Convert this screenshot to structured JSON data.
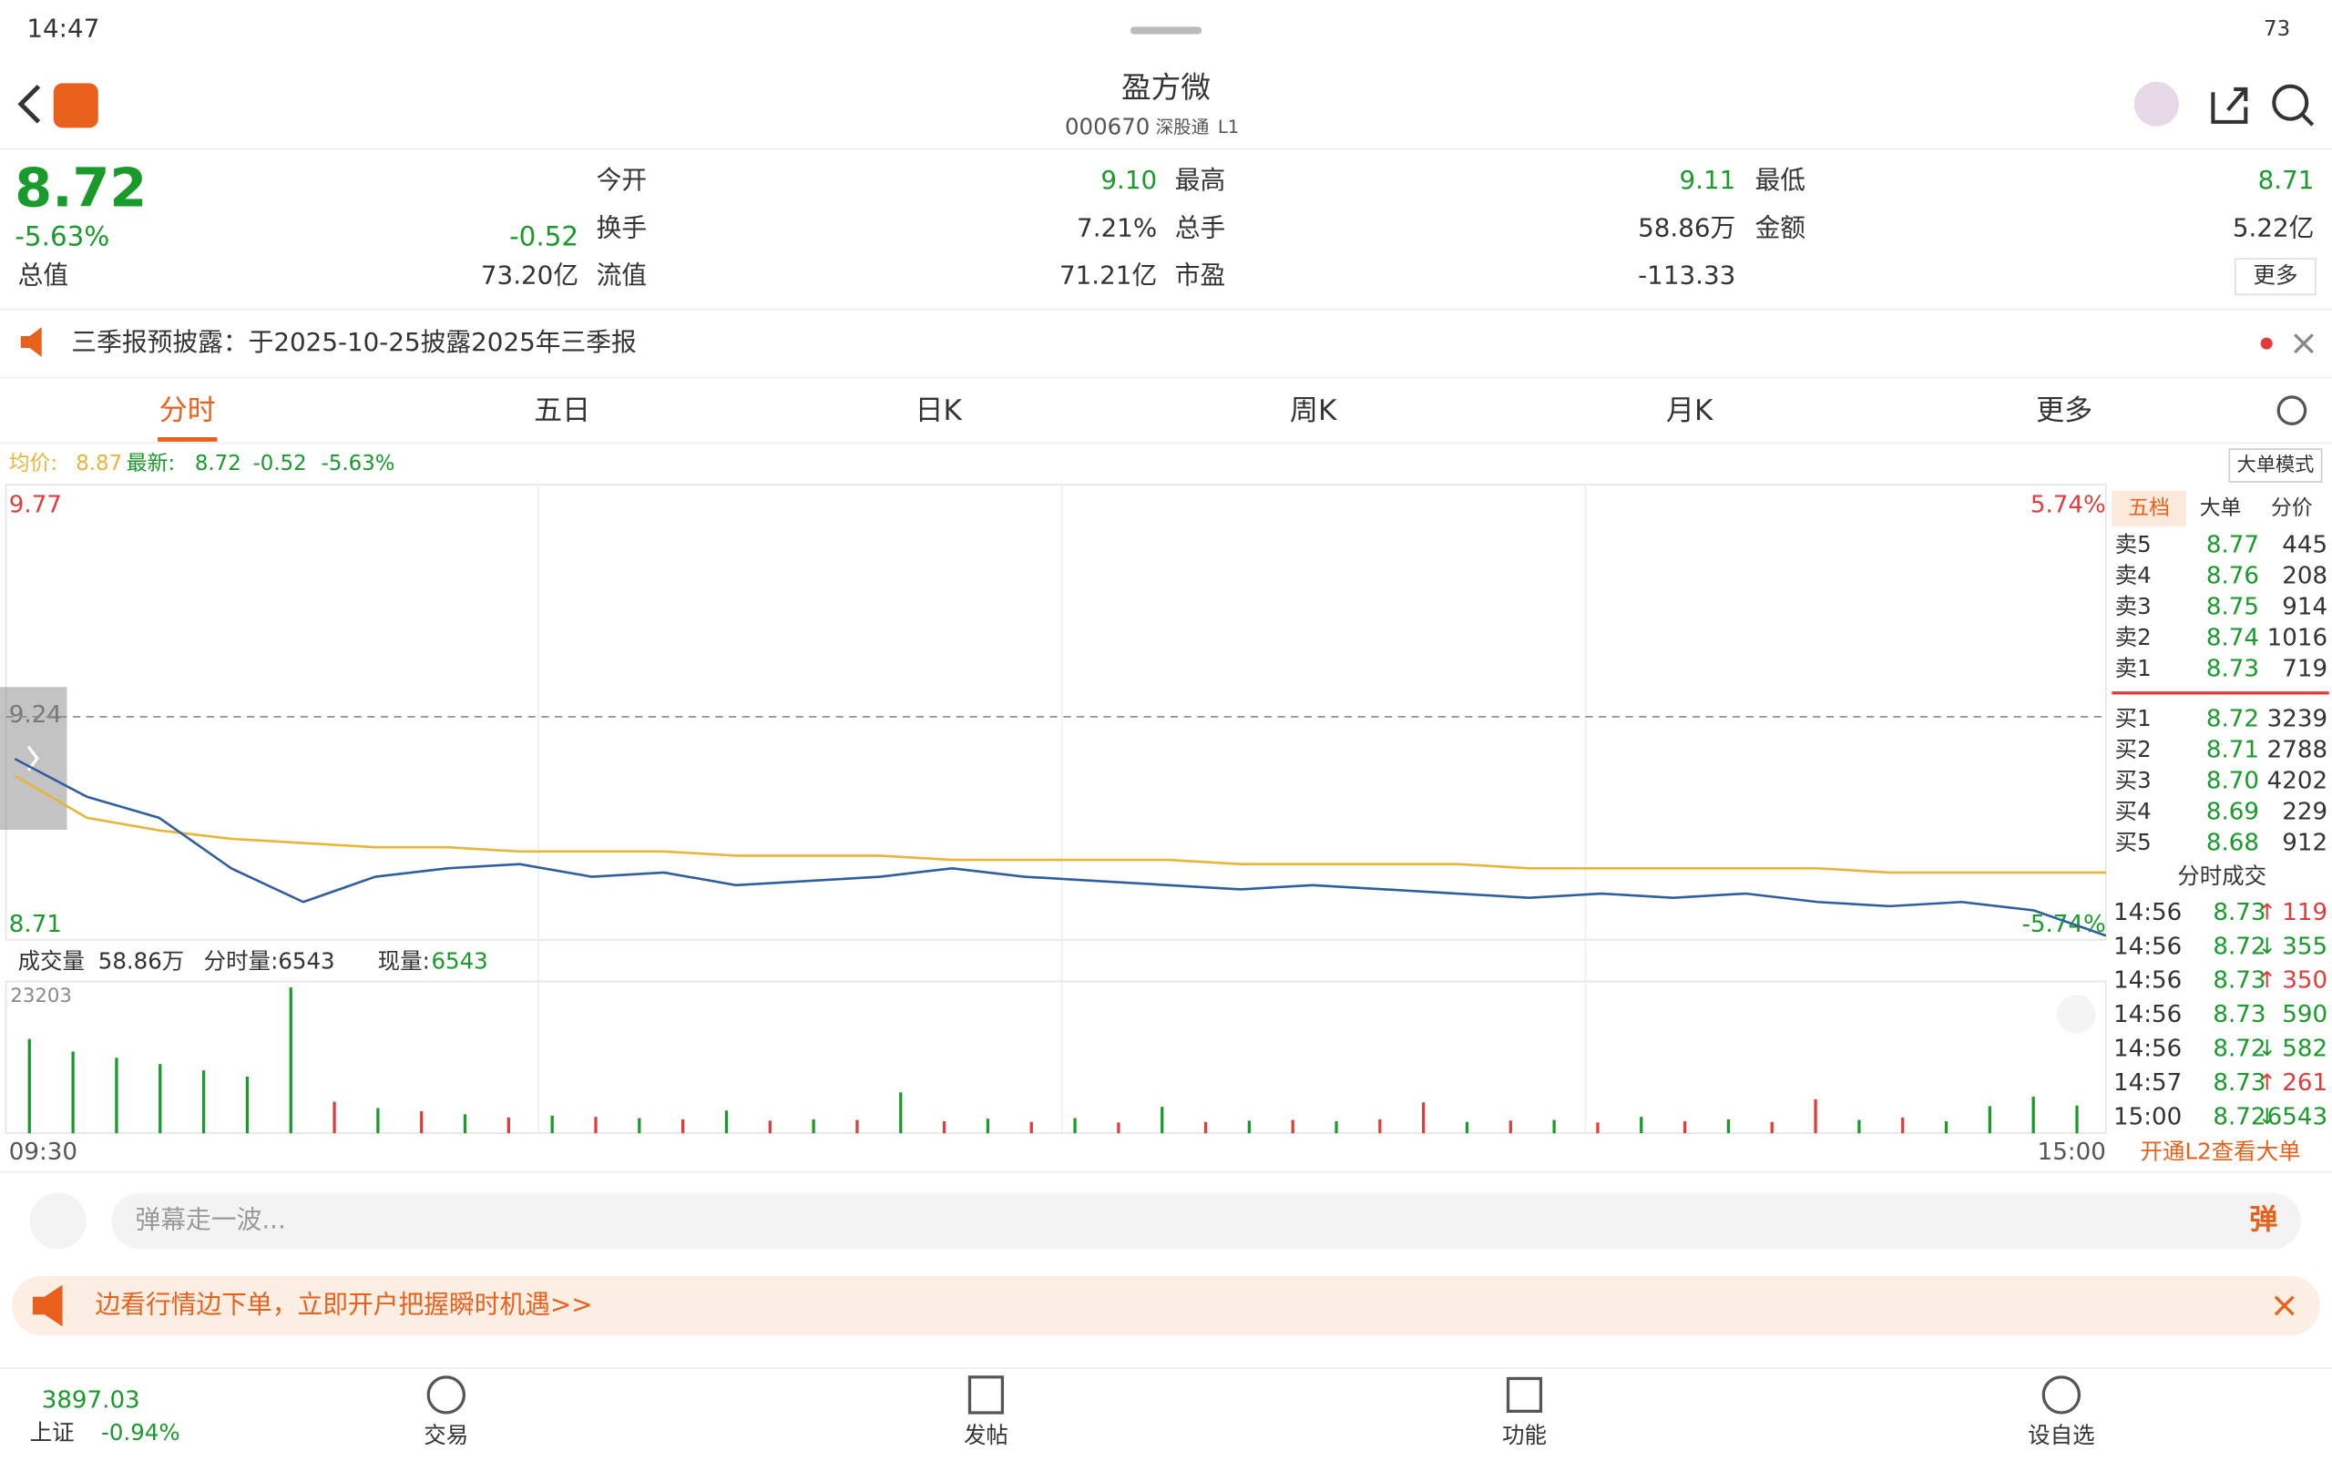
{
  "status": {
    "time": "14:47",
    "battery": "73"
  },
  "header": {
    "title": "盈方微",
    "code": "000670",
    "tags": [
      "深股通",
      "L1"
    ]
  },
  "quote": {
    "price": "8.72",
    "change_pct": "-5.63%",
    "change": "-0.52",
    "more": "更多",
    "cells": [
      {
        "label": "今开",
        "value": "9.10"
      },
      {
        "label": "最高",
        "value": "9.11"
      },
      {
        "label": "最低",
        "value": "8.71"
      },
      {
        "label": "换手",
        "value": "7.21%"
      },
      {
        "label": "总手",
        "value": "58.86万"
      },
      {
        "label": "金额",
        "value": "5.22亿"
      },
      {
        "label": "总值",
        "value": "73.20亿"
      },
      {
        "label": "流值",
        "value": "71.21亿"
      },
      {
        "label": "市盈",
        "value": "-113.33"
      }
    ]
  },
  "notice": "三季报预披露：于2025-10-25披露2025年三季报",
  "tabs": [
    "分时",
    "五日",
    "日K",
    "周K",
    "月K",
    "更多"
  ],
  "info": {
    "avg_label": "均价:",
    "avg": "8.87",
    "last_label": "最新:",
    "last": "8.72",
    "change": "-0.52",
    "pct": "-5.63%",
    "mode": "大单模式"
  },
  "chart_data": {
    "type": "line",
    "ylim": [
      8.71,
      9.77
    ],
    "yticks": [
      {
        "value": 9.77,
        "label": "9.77"
      },
      {
        "value": 9.24,
        "label": "9.24"
      },
      {
        "value": 8.71,
        "label": "8.71"
      }
    ],
    "pct_labels": [
      "5.74%",
      "-5.74%"
    ],
    "x_labels": [
      "09:30",
      "15:00"
    ],
    "series": [
      {
        "name": "最新",
        "color": "#2f5e9e",
        "values": [
          9.14,
          9.05,
          9.0,
          8.88,
          8.8,
          8.86,
          8.88,
          8.89,
          8.86,
          8.87,
          8.84,
          8.85,
          8.86,
          8.88,
          8.86,
          8.85,
          8.84,
          8.83,
          8.84,
          8.83,
          8.82,
          8.81,
          8.82,
          8.81,
          8.82,
          8.8,
          8.79,
          8.8,
          8.78,
          8.72
        ]
      },
      {
        "name": "均价",
        "color": "#e6b53c",
        "values": [
          9.1,
          9.0,
          8.97,
          8.95,
          8.94,
          8.93,
          8.93,
          8.92,
          8.92,
          8.92,
          8.91,
          8.91,
          8.91,
          8.9,
          8.9,
          8.9,
          8.9,
          8.89,
          8.89,
          8.89,
          8.89,
          8.88,
          8.88,
          8.88,
          8.88,
          8.88,
          8.87,
          8.87,
          8.87,
          8.87
        ]
      }
    ]
  },
  "volume_data": {
    "type": "bar",
    "label": "成交量",
    "total": "58.86万",
    "tick_volume": "分时量:6543",
    "current_label": "现量:",
    "current": "6543",
    "ylim": [
      0,
      23203
    ],
    "yticks": [
      {
        "value": 23203,
        "label": "23203"
      }
    ],
    "values": [
      15000,
      13000,
      12000,
      11000,
      10000,
      9000,
      23203,
      5000,
      4000,
      3500,
      3000,
      2500,
      2800,
      2600,
      2400,
      2200,
      3600,
      2000,
      2200,
      2100,
      6500,
      1900,
      2300,
      1800,
      2400,
      1700,
      4200,
      1800,
      2000,
      2100,
      1900,
      2200,
      4900,
      1800,
      2000,
      2100,
      1700,
      2600,
      1900,
      2200,
      1800,
      5400,
      2100,
      2500,
      1900,
      4300,
      5800,
      4400
    ],
    "colors": [
      "#1a9a2a",
      "#1a9a2a",
      "#1a9a2a",
      "#1a9a2a",
      "#1a9a2a",
      "#1a9a2a",
      "#1a9a2a",
      "#e03c3c",
      "#1a9a2a",
      "#e03c3c",
      "#1a9a2a",
      "#e03c3c",
      "#1a9a2a",
      "#e03c3c",
      "#1a9a2a",
      "#e03c3c",
      "#1a9a2a",
      "#e03c3c",
      "#1a9a2a",
      "#e03c3c",
      "#1a9a2a",
      "#e03c3c",
      "#1a9a2a",
      "#e03c3c",
      "#1a9a2a",
      "#e03c3c",
      "#1a9a2a",
      "#e03c3c",
      "#1a9a2a",
      "#e03c3c",
      "#1a9a2a",
      "#e03c3c",
      "#e03c3c",
      "#1a9a2a",
      "#e03c3c",
      "#1a9a2a",
      "#e03c3c",
      "#1a9a2a",
      "#e03c3c",
      "#1a9a2a",
      "#e03c3c",
      "#e03c3c",
      "#1a9a2a",
      "#e03c3c",
      "#1a9a2a",
      "#1a9a2a",
      "#1a9a2a",
      "#1a9a2a"
    ]
  },
  "book": {
    "tabs": [
      "五档",
      "大单",
      "分价"
    ],
    "sells": [
      [
        "卖5",
        "8.77",
        "445"
      ],
      [
        "卖4",
        "8.76",
        "208"
      ],
      [
        "卖3",
        "8.75",
        "914"
      ],
      [
        "卖2",
        "8.74",
        "1016"
      ],
      [
        "卖1",
        "8.73",
        "719"
      ]
    ],
    "buys": [
      [
        "买1",
        "8.72",
        "3239"
      ],
      [
        "买2",
        "8.71",
        "2788"
      ],
      [
        "买3",
        "8.70",
        "4202"
      ],
      [
        "买4",
        "8.69",
        "229"
      ],
      [
        "买5",
        "8.68",
        "912"
      ]
    ],
    "trades_title": "分时成交",
    "trades": [
      [
        "14:56",
        "8.73",
        "↑",
        "119"
      ],
      [
        "14:56",
        "8.72",
        "↓",
        "355"
      ],
      [
        "14:56",
        "8.73",
        "↑",
        "350"
      ],
      [
        "14:56",
        "8.73",
        "",
        "590"
      ],
      [
        "14:56",
        "8.72",
        "↓",
        "582"
      ],
      [
        "14:57",
        "8.73",
        "↑",
        "261"
      ],
      [
        "15:00",
        "8.72",
        "↓",
        "6543"
      ]
    ],
    "l2": "开通L2查看大单"
  },
  "input": {
    "placeholder": "弹幕走一波...",
    "button": "弹"
  },
  "banner": "边看行情边下单，立即开户把握瞬时机遇>>",
  "bottom": {
    "index_value": "3897.03",
    "index_name": "上证",
    "index_pct": "-0.94%",
    "nav": [
      "交易",
      "发帖",
      "功能",
      "设自选"
    ]
  }
}
